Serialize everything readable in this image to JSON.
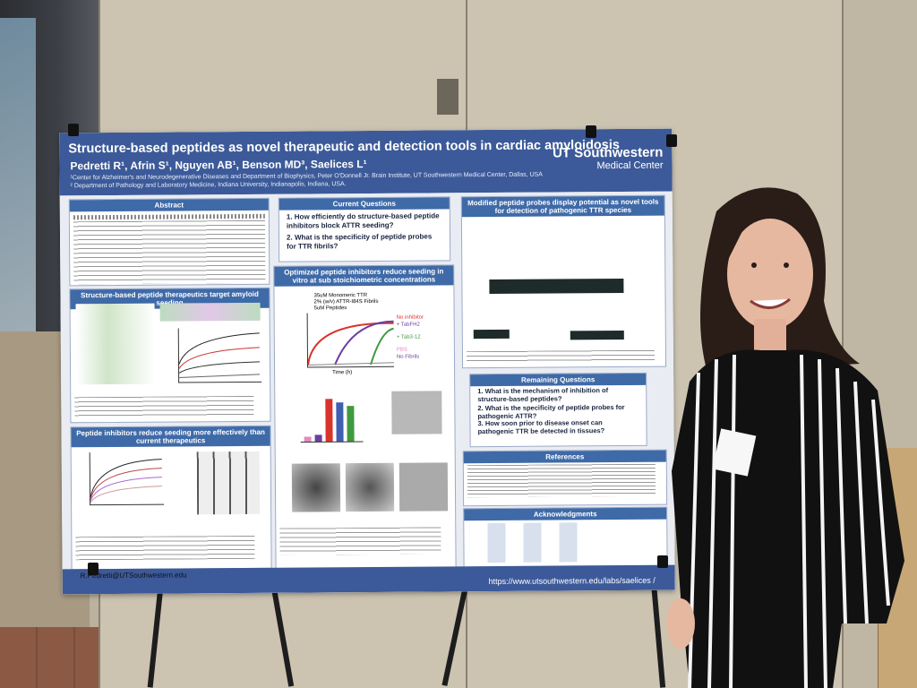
{
  "poster": {
    "title": "Structure-based peptides as novel therapeutic and detection tools in cardiac amyloidosis",
    "authors": "Pedretti R¹, Afrin S¹, Nguyen AB¹, Benson MD³, Saelices L¹",
    "affiliation_1": "¹Center for Alzheimer's and Neurodegenerative Diseases and Department of Biophysics, Peter O'Donnell Jr. Brain Institute, UT Southwestern Medical Center, Dallas, USA",
    "affiliation_2": "² Department of Pathology and Laboratory Medicine, Indiana University, Indianapolis, Indiana, USA.",
    "logo_line1": "UT Southwestern",
    "logo_line2": "Medical Center",
    "sections": {
      "abstract": "Abstract",
      "current_questions": "Current Questions",
      "question_1": "1. How efficiently do structure-based peptide inhibitors block ATTR seeding?",
      "question_2": "2. What is the specificity of peptide probes for TTR fibrils?",
      "modified_probes": "Modified peptide probes display potential as novel tools for detection of pathogenic TTR species",
      "structure_based": "Structure-based peptide therapeutics target amyloid seeding",
      "optimized_inhibitors": "Optimized peptide inhibitors reduce seeding in vitro at sub stoichiometric concentrations",
      "peptide_inhibitors": "Peptide inhibitors reduce seeding more effectively than current therapeutics",
      "remaining_questions": "Remaining Questions",
      "remaining_1": "1. What is the mechanism of inhibition of structure-based peptides?",
      "remaining_2": "2. What is the specificity of peptide probes for pathogenic ATTR?",
      "remaining_3": "3. How soon prior to disease onset can pathogenic TTR be detected in tissues?",
      "references": "References",
      "acknowledgments": "Acknowledgments"
    },
    "chart_labels": {
      "monomeric": "35uM Monomeric TTR",
      "fibrils": "2% (w/v) ATTR-I84S Fibrils",
      "peptides": "5uM Peptides",
      "no_inhibitor": "No inhibitor",
      "tabfh2": "+ TabFH2",
      "tab3_12": "+ Tab3-12",
      "pbs": "PBS",
      "no_fibrils": "No Fibrils",
      "time_axis": "Time (h)"
    },
    "email": "R.Pedretti@UTSouthwestern.edu",
    "url": "https://www.utsouthwestern.edu/labs/saelices /"
  },
  "colors": {
    "header_blue": "#3c5a99",
    "box_header_blue": "#3f6aa8",
    "red": "#d9342b",
    "purple": "#6b3fa0",
    "green": "#3f9a3f"
  }
}
